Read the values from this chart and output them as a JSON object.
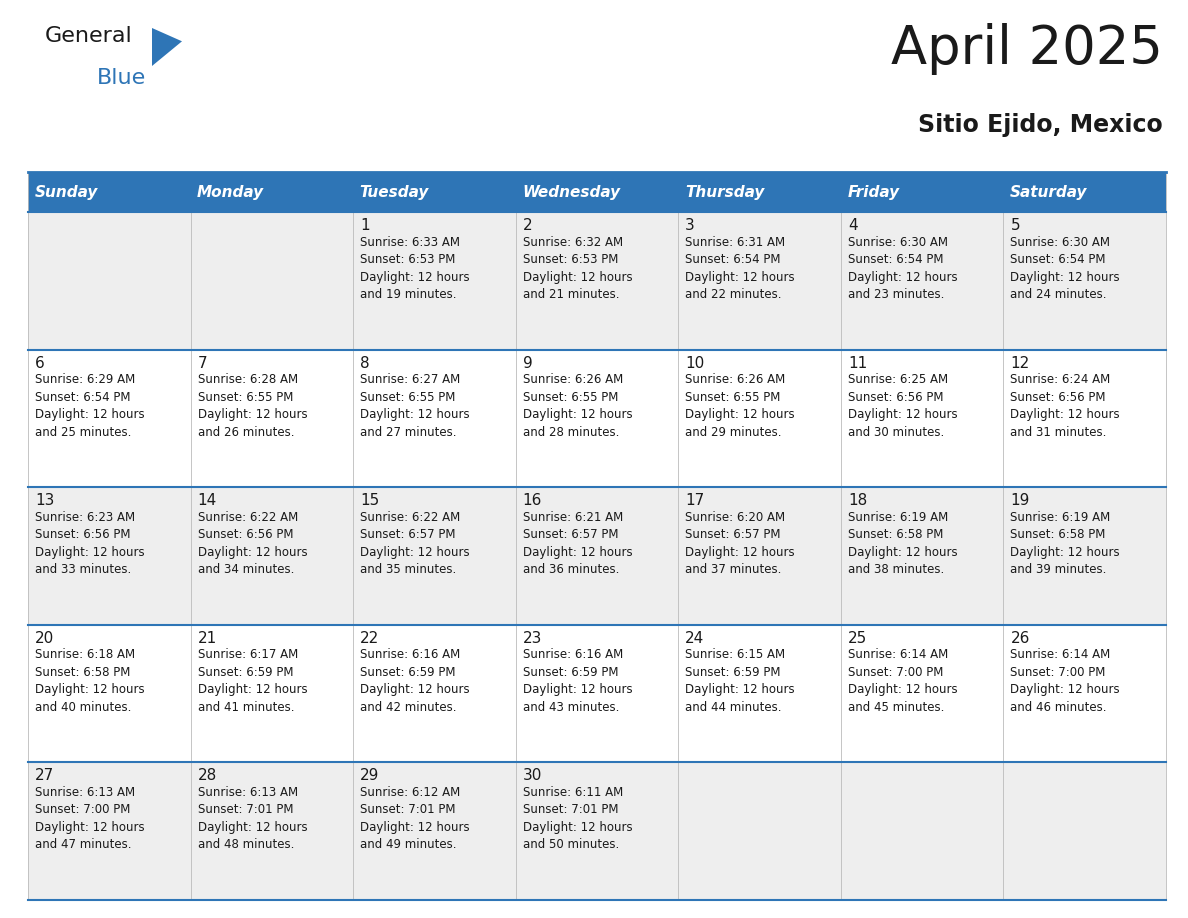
{
  "title": "April 2025",
  "subtitle": "Sitio Ejido, Mexico",
  "header_bg": "#2e75b6",
  "header_text_color": "#ffffff",
  "border_color": "#2e75b6",
  "text_color": "#1a1a1a",
  "day_names": [
    "Sunday",
    "Monday",
    "Tuesday",
    "Wednesday",
    "Thursday",
    "Friday",
    "Saturday"
  ],
  "weeks": [
    [
      {
        "day": "",
        "sunrise": "",
        "sunset": "",
        "daylight": ""
      },
      {
        "day": "",
        "sunrise": "",
        "sunset": "",
        "daylight": ""
      },
      {
        "day": "1",
        "sunrise": "6:33 AM",
        "sunset": "6:53 PM",
        "daylight": "12 hours\nand 19 minutes."
      },
      {
        "day": "2",
        "sunrise": "6:32 AM",
        "sunset": "6:53 PM",
        "daylight": "12 hours\nand 21 minutes."
      },
      {
        "day": "3",
        "sunrise": "6:31 AM",
        "sunset": "6:54 PM",
        "daylight": "12 hours\nand 22 minutes."
      },
      {
        "day": "4",
        "sunrise": "6:30 AM",
        "sunset": "6:54 PM",
        "daylight": "12 hours\nand 23 minutes."
      },
      {
        "day": "5",
        "sunrise": "6:30 AM",
        "sunset": "6:54 PM",
        "daylight": "12 hours\nand 24 minutes."
      }
    ],
    [
      {
        "day": "6",
        "sunrise": "6:29 AM",
        "sunset": "6:54 PM",
        "daylight": "12 hours\nand 25 minutes."
      },
      {
        "day": "7",
        "sunrise": "6:28 AM",
        "sunset": "6:55 PM",
        "daylight": "12 hours\nand 26 minutes."
      },
      {
        "day": "8",
        "sunrise": "6:27 AM",
        "sunset": "6:55 PM",
        "daylight": "12 hours\nand 27 minutes."
      },
      {
        "day": "9",
        "sunrise": "6:26 AM",
        "sunset": "6:55 PM",
        "daylight": "12 hours\nand 28 minutes."
      },
      {
        "day": "10",
        "sunrise": "6:26 AM",
        "sunset": "6:55 PM",
        "daylight": "12 hours\nand 29 minutes."
      },
      {
        "day": "11",
        "sunrise": "6:25 AM",
        "sunset": "6:56 PM",
        "daylight": "12 hours\nand 30 minutes."
      },
      {
        "day": "12",
        "sunrise": "6:24 AM",
        "sunset": "6:56 PM",
        "daylight": "12 hours\nand 31 minutes."
      }
    ],
    [
      {
        "day": "13",
        "sunrise": "6:23 AM",
        "sunset": "6:56 PM",
        "daylight": "12 hours\nand 33 minutes."
      },
      {
        "day": "14",
        "sunrise": "6:22 AM",
        "sunset": "6:56 PM",
        "daylight": "12 hours\nand 34 minutes."
      },
      {
        "day": "15",
        "sunrise": "6:22 AM",
        "sunset": "6:57 PM",
        "daylight": "12 hours\nand 35 minutes."
      },
      {
        "day": "16",
        "sunrise": "6:21 AM",
        "sunset": "6:57 PM",
        "daylight": "12 hours\nand 36 minutes."
      },
      {
        "day": "17",
        "sunrise": "6:20 AM",
        "sunset": "6:57 PM",
        "daylight": "12 hours\nand 37 minutes."
      },
      {
        "day": "18",
        "sunrise": "6:19 AM",
        "sunset": "6:58 PM",
        "daylight": "12 hours\nand 38 minutes."
      },
      {
        "day": "19",
        "sunrise": "6:19 AM",
        "sunset": "6:58 PM",
        "daylight": "12 hours\nand 39 minutes."
      }
    ],
    [
      {
        "day": "20",
        "sunrise": "6:18 AM",
        "sunset": "6:58 PM",
        "daylight": "12 hours\nand 40 minutes."
      },
      {
        "day": "21",
        "sunrise": "6:17 AM",
        "sunset": "6:59 PM",
        "daylight": "12 hours\nand 41 minutes."
      },
      {
        "day": "22",
        "sunrise": "6:16 AM",
        "sunset": "6:59 PM",
        "daylight": "12 hours\nand 42 minutes."
      },
      {
        "day": "23",
        "sunrise": "6:16 AM",
        "sunset": "6:59 PM",
        "daylight": "12 hours\nand 43 minutes."
      },
      {
        "day": "24",
        "sunrise": "6:15 AM",
        "sunset": "6:59 PM",
        "daylight": "12 hours\nand 44 minutes."
      },
      {
        "day": "25",
        "sunrise": "6:14 AM",
        "sunset": "7:00 PM",
        "daylight": "12 hours\nand 45 minutes."
      },
      {
        "day": "26",
        "sunrise": "6:14 AM",
        "sunset": "7:00 PM",
        "daylight": "12 hours\nand 46 minutes."
      }
    ],
    [
      {
        "day": "27",
        "sunrise": "6:13 AM",
        "sunset": "7:00 PM",
        "daylight": "12 hours\nand 47 minutes."
      },
      {
        "day": "28",
        "sunrise": "6:13 AM",
        "sunset": "7:01 PM",
        "daylight": "12 hours\nand 48 minutes."
      },
      {
        "day": "29",
        "sunrise": "6:12 AM",
        "sunset": "7:01 PM",
        "daylight": "12 hours\nand 49 minutes."
      },
      {
        "day": "30",
        "sunrise": "6:11 AM",
        "sunset": "7:01 PM",
        "daylight": "12 hours\nand 50 minutes."
      },
      {
        "day": "",
        "sunrise": "",
        "sunset": "",
        "daylight": ""
      },
      {
        "day": "",
        "sunrise": "",
        "sunset": "",
        "daylight": ""
      },
      {
        "day": "",
        "sunrise": "",
        "sunset": "",
        "daylight": ""
      }
    ]
  ],
  "logo_general_color": "#1a1a1a",
  "logo_blue_color": "#2e75b6",
  "triangle_color": "#2e75b6"
}
